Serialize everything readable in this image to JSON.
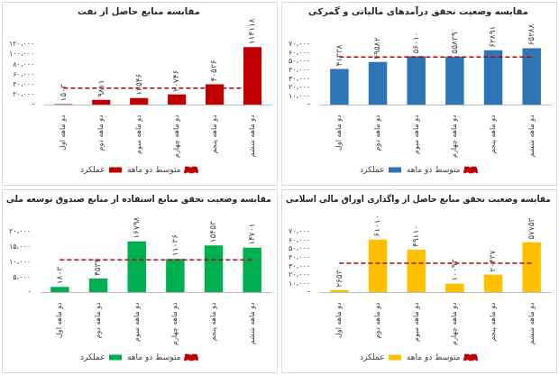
{
  "chart_data": [
    {
      "type": "bar",
      "title": "مقایسه منابع حاصل از نفت",
      "categories": [
        "دو ماهه اول",
        "دو ماهه دوم",
        "دو ماهه سوم",
        "دو ماهه چهارم",
        "دو ماهه پنجم",
        "دو ماهه ششم"
      ],
      "series": [
        {
          "name": "عملکرد",
          "type": "bar",
          "color": "#c00000",
          "values": [
            1503,
            9811,
            13546,
            20746,
            40536,
            114118
          ],
          "value_labels": [
            "۱۵۰۳",
            "۹۸۱۱",
            "۱۳۵۴۶",
            "۲۰۷۴۶",
            "۴۰۵۳۶",
            "۱۱۴۱۱۸"
          ]
        },
        {
          "name": "متوسط دو ماهه",
          "type": "line",
          "color": "#c00000",
          "line_style": "dashed",
          "values": [
            33377,
            33377,
            33377,
            33377,
            33377,
            33377
          ]
        }
      ],
      "ylim": [
        0,
        120000
      ],
      "yticks": [
        {
          "value": 0,
          "label": "-"
        },
        {
          "value": 20000,
          "label": "۲۰،۰۰۰"
        },
        {
          "value": 40000,
          "label": "۴۰،۰۰۰"
        },
        {
          "value": 60000,
          "label": "۶۰،۰۰۰"
        },
        {
          "value": 80000,
          "label": "۸۰،۰۰۰"
        },
        {
          "value": 100000,
          "label": "۱۰۰،۰۰۰"
        },
        {
          "value": 120000,
          "label": "۱۲۰،۰۰۰"
        }
      ],
      "grid": false,
      "legend": "bottom",
      "data_labels": true
    },
    {
      "type": "bar",
      "title": "مقایسه وضعیت تحقق درآمدهای مالیاتی و گمرکی",
      "categories": [
        "دو ماهه اول",
        "دو ماهه دوم",
        "دو ماهه سوم",
        "دو ماهه چهارم",
        "دو ماهه پنجم",
        "دو ماهه ششم"
      ],
      "series": [
        {
          "name": "عملکرد",
          "type": "bar",
          "color": "#2e75b6",
          "values": [
            41338,
            49582,
            56010,
            55839,
            62891,
            65288
          ],
          "value_labels": [
            "۴۱۳۳۸",
            "۴۹۵۸۲",
            "۵۶۰۱۰",
            "۵۵۸۳۹",
            "۶۲۸۹۱",
            "۶۵۲۸۸"
          ]
        },
        {
          "name": "متوسط دو ماهه",
          "type": "line",
          "color": "#c00000",
          "line_style": "dashed",
          "values": [
            55158,
            55158,
            55158,
            55158,
            55158,
            55158
          ]
        }
      ],
      "ylim": [
        0,
        70000
      ],
      "yticks": [
        {
          "value": 0,
          "label": "-"
        },
        {
          "value": 10000,
          "label": "۱۰،۰۰۰"
        },
        {
          "value": 20000,
          "label": "۲۰،۰۰۰"
        },
        {
          "value": 30000,
          "label": "۳۰،۰۰۰"
        },
        {
          "value": 40000,
          "label": "۴۰،۰۰۰"
        },
        {
          "value": 50000,
          "label": "۵۰،۰۰۰"
        },
        {
          "value": 60000,
          "label": "۶۰،۰۰۰"
        },
        {
          "value": 70000,
          "label": "۷۰،۰۰۰"
        }
      ],
      "grid": false,
      "legend": "bottom",
      "data_labels": true
    },
    {
      "type": "bar",
      "title": "مقایسه وضعیت تحقق منابع استفاده از منابع صندوق توسعه ملی",
      "categories": [
        "دو ماهه اول",
        "دو ماهه دوم",
        "دو ماهه سوم",
        "دو ماهه چهارم",
        "دو ماهه پنجم",
        "دو ماهه ششم"
      ],
      "series": [
        {
          "name": "عملکرد",
          "type": "bar",
          "color": "#00b050",
          "values": [
            1803,
            4534,
            16798,
            11036,
            15453,
            14701
          ],
          "value_labels": [
            "۱۸۰۳",
            "۴۵۳۴",
            "۱۶۷۹۸",
            "۱۱۰۳۶",
            "۱۵۴۵۳",
            "۱۴۷۰۱"
          ]
        },
        {
          "name": "متوسط دو ماهه",
          "type": "line",
          "color": "#c00000",
          "line_style": "dashed",
          "values": [
            10721,
            10721,
            10721,
            10721,
            10721,
            10721
          ]
        }
      ],
      "ylim": [
        0,
        20000
      ],
      "yticks": [
        {
          "value": 0,
          "label": "-"
        },
        {
          "value": 5000,
          "label": "۵،۰۰۰"
        },
        {
          "value": 10000,
          "label": "۱۰،۰۰۰"
        },
        {
          "value": 15000,
          "label": "۱۵،۰۰۰"
        },
        {
          "value": 20000,
          "label": "۲۰،۰۰۰"
        }
      ],
      "grid": false,
      "legend": "bottom",
      "data_labels": true
    },
    {
      "type": "bar",
      "title": "مقایسه وضعیت تحقق منابع حاصل از واگذاری اوراق مالی اسلامی",
      "categories": [
        "دو ماهه اول",
        "دو ماهه دوم",
        "دو ماهه سوم",
        "دو ماهه چهارم",
        "دو ماهه پنجم",
        "دو ماهه ششم"
      ],
      "series": [
        {
          "name": "عملکرد",
          "type": "bar",
          "color": "#ffc000",
          "values": [
            2653,
            61010,
            49110,
            10093,
            20437,
            57753
          ],
          "value_labels": [
            "۲۶۵۳",
            "۶۱۰۱۰",
            "۴۹۱۱۰",
            "۱۰۰۹۳",
            "۲۰۴۳۷",
            "۵۷۷۵۳"
          ]
        },
        {
          "name": "متوسط دو ماهه",
          "type": "line",
          "color": "#c00000",
          "line_style": "dashed",
          "values": [
            33509,
            33509,
            33509,
            33509,
            33509,
            33509
          ]
        }
      ],
      "ylim": [
        0,
        70000
      ],
      "yticks": [
        {
          "value": 0,
          "label": "-"
        },
        {
          "value": 10000,
          "label": "۱۰،۰۰۰"
        },
        {
          "value": 20000,
          "label": "۲۰،۰۰۰"
        },
        {
          "value": 30000,
          "label": "۳۰،۰۰۰"
        },
        {
          "value": 40000,
          "label": "۴۰،۰۰۰"
        },
        {
          "value": 50000,
          "label": "۵۰،۰۰۰"
        },
        {
          "value": 60000,
          "label": "۶۰،۰۰۰"
        },
        {
          "value": 70000,
          "label": "۷۰،۰۰۰"
        }
      ],
      "grid": false,
      "legend": "bottom",
      "data_labels": true
    }
  ]
}
